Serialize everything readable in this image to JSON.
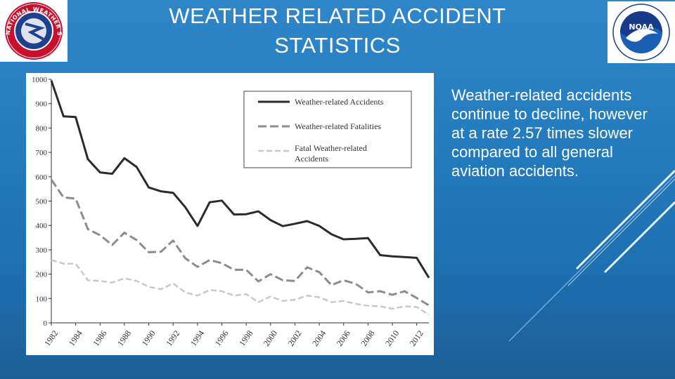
{
  "slide": {
    "title_line1": "WEATHER RELATED ACCIDENT",
    "title_line2": "STATISTICS",
    "body_text": "Weather-related accidents continue to decline, however at a rate 2.57 times slower compared to all general aviation accidents."
  },
  "logos": {
    "left": {
      "name": "National Weather Service logo",
      "text": "NATIONAL WEATHER SERVICE"
    },
    "right": {
      "name": "NOAA logo",
      "center_text": "NOAA",
      "ring_text": "NATIONAL OCEANIC AND ATMOSPHERIC ADMINISTRATION · U.S. DEPARTMENT OF COMMERCE"
    }
  },
  "colors": {
    "background_top": "#2f86c8",
    "background_bottom": "#1b5f98",
    "accidents": "#2b2b2b",
    "fatalities": "#8c8c8c",
    "fatal_accidents": "#c8c8c8"
  },
  "chart_data": {
    "type": "line",
    "title": "",
    "xlabel": "",
    "ylabel": "",
    "ylim": [
      0,
      1000
    ],
    "yticks": [
      0,
      100,
      200,
      300,
      400,
      500,
      600,
      700,
      800,
      900,
      1000
    ],
    "xlim": [
      1982,
      2013
    ],
    "xticks": [
      1982,
      1984,
      1986,
      1988,
      1990,
      1992,
      1994,
      1996,
      1998,
      2000,
      2002,
      2004,
      2006,
      2008,
      2010,
      2012
    ],
    "grid": false,
    "legend": "top-right",
    "x": [
      1982,
      1983,
      1984,
      1985,
      1986,
      1987,
      1988,
      1989,
      1990,
      1991,
      1992,
      1993,
      1994,
      1995,
      1996,
      1997,
      1998,
      1999,
      2000,
      2001,
      2002,
      2003,
      2004,
      2005,
      2006,
      2007,
      2008,
      2009,
      2010,
      2011,
      2012,
      2013
    ],
    "series": [
      {
        "name": "Weather-related Accidents",
        "style": "solid",
        "values": [
          995,
          848,
          845,
          672,
          618,
          612,
          676,
          640,
          556,
          540,
          534,
          475,
          398,
          495,
          502,
          445,
          446,
          458,
          422,
          397,
          407,
          418,
          398,
          364,
          343,
          345,
          348,
          278,
          273,
          270,
          267,
          185
        ]
      },
      {
        "name": "Weather-related Fatalities",
        "style": "dashed",
        "values": [
          588,
          515,
          510,
          385,
          360,
          320,
          370,
          340,
          290,
          292,
          338,
          265,
          230,
          258,
          245,
          218,
          218,
          170,
          200,
          175,
          172,
          228,
          208,
          155,
          175,
          160,
          125,
          130,
          115,
          130,
          102,
          72
        ]
      },
      {
        "name": "Fatal Weather-related Accidents",
        "style": "dashed",
        "values": [
          258,
          243,
          243,
          175,
          172,
          165,
          183,
          172,
          148,
          138,
          162,
          125,
          112,
          135,
          130,
          112,
          118,
          85,
          108,
          90,
          95,
          112,
          105,
          85,
          90,
          78,
          70,
          68,
          58,
          68,
          65,
          33
        ]
      }
    ]
  }
}
